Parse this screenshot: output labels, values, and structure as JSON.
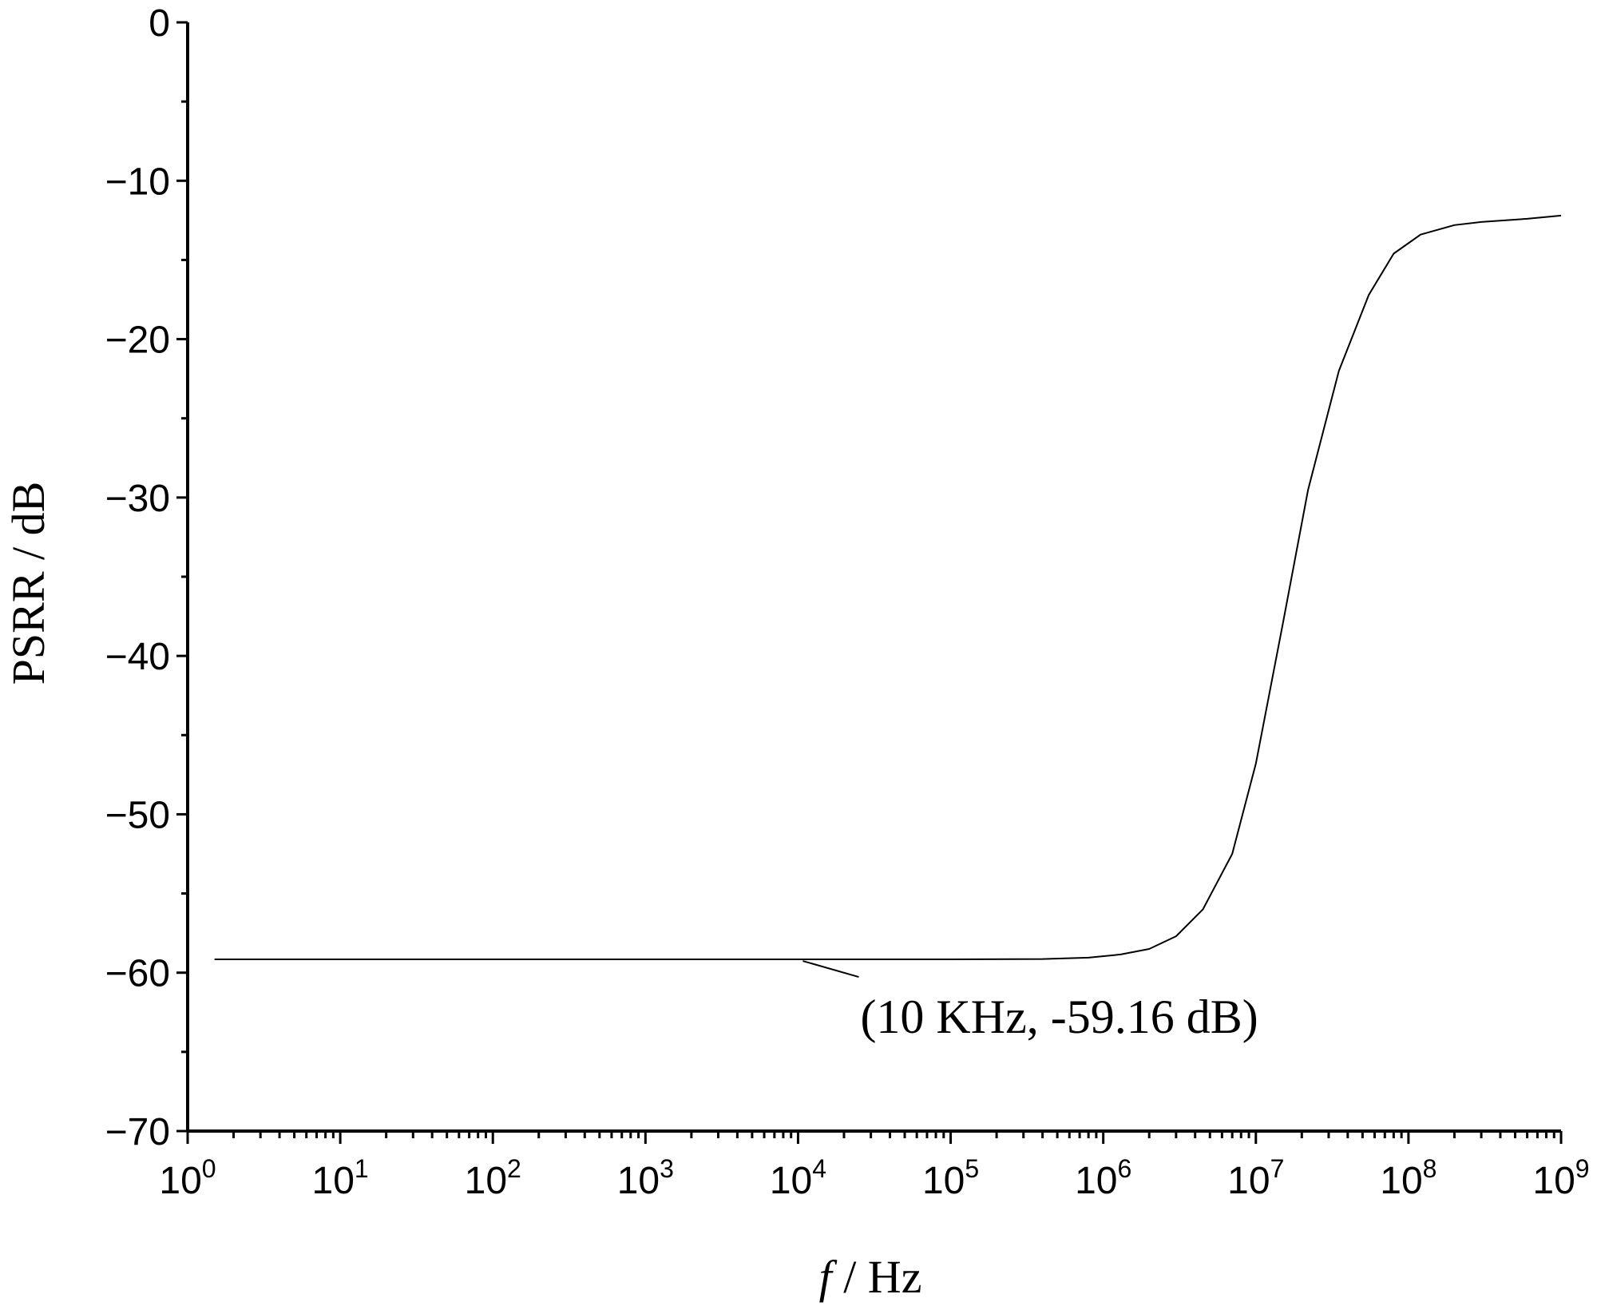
{
  "chart_data": {
    "type": "line",
    "title": "",
    "xlabel": {
      "symbol": "f",
      "unit": " / Hz"
    },
    "ylabel": "PSRR / dB",
    "xscale": "log",
    "xlim": [
      1,
      1000000000
    ],
    "ylim": [
      -70,
      0
    ],
    "grid": false,
    "legend": "none",
    "y_ticks": [
      {
        "value": 0,
        "label": "0"
      },
      {
        "value": -10,
        "label": "−10"
      },
      {
        "value": -20,
        "label": "−20"
      },
      {
        "value": -30,
        "label": "−30"
      },
      {
        "value": -40,
        "label": "−40"
      },
      {
        "value": -50,
        "label": "−50"
      },
      {
        "value": -60,
        "label": "−60"
      },
      {
        "value": -70,
        "label": "−70"
      }
    ],
    "x_ticks": [
      {
        "value": 1,
        "base": "10",
        "exp": "0"
      },
      {
        "value": 10,
        "base": "10",
        "exp": "1"
      },
      {
        "value": 100,
        "base": "10",
        "exp": "2"
      },
      {
        "value": 1000,
        "base": "10",
        "exp": "3"
      },
      {
        "value": 10000,
        "base": "10",
        "exp": "4"
      },
      {
        "value": 100000,
        "base": "10",
        "exp": "5"
      },
      {
        "value": 1000000,
        "base": "10",
        "exp": "6"
      },
      {
        "value": 10000000,
        "base": "10",
        "exp": "7"
      },
      {
        "value": 100000000,
        "base": "10",
        "exp": "8"
      },
      {
        "value": 1000000000,
        "base": "10",
        "exp": "9"
      }
    ],
    "series": [
      {
        "color": "#000000",
        "x": [
          1.5,
          10,
          100,
          1000,
          10000,
          100000,
          400000,
          800000,
          1300000,
          2000000,
          3000000,
          4500000,
          7000000,
          10000000,
          15000000,
          22000000,
          35000000,
          55000000,
          80000000,
          120000000,
          200000000,
          300000000,
          600000000,
          1000000000
        ],
        "y": [
          -59.16,
          -59.16,
          -59.16,
          -59.16,
          -59.16,
          -59.16,
          -59.14,
          -59.05,
          -58.85,
          -58.5,
          -57.7,
          -56.0,
          -52.5,
          -46.8,
          -38.0,
          -29.5,
          -22.0,
          -17.2,
          -14.6,
          -13.4,
          -12.8,
          -12.6,
          -12.4,
          -12.2
        ]
      }
    ],
    "annotations": [
      {
        "text": "(10 KHz, -59.16 dB)",
        "x": 10000,
        "y": -59.16
      }
    ]
  }
}
